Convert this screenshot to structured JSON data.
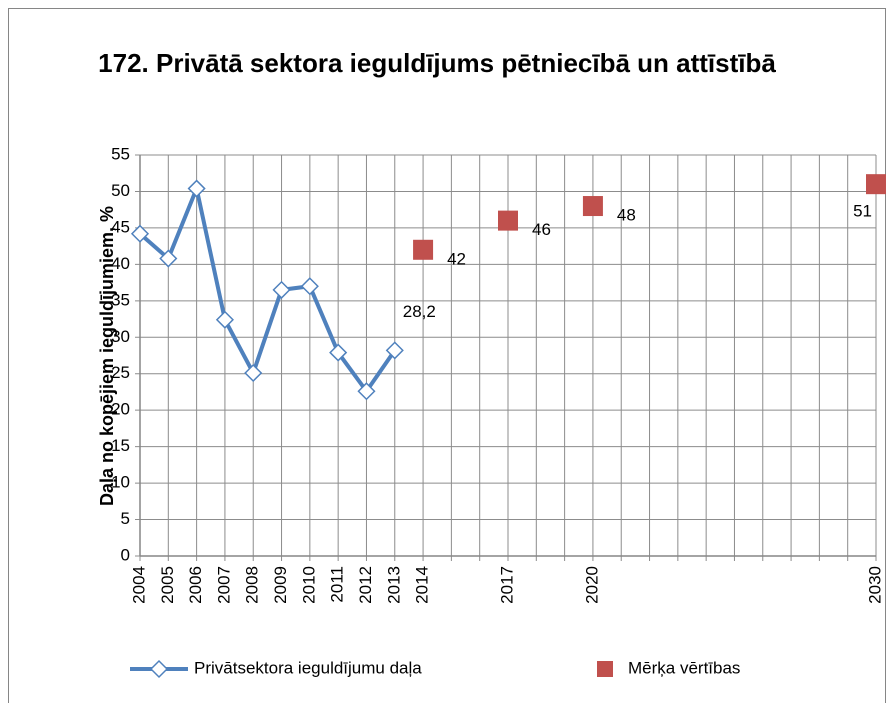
{
  "chart_data": {
    "type": "line",
    "title": "172. Privātā sektora ieguldījums pētniecībā un attīstībā",
    "y_label": "Daļa no kopējiem ieguldījumiem, %",
    "categories": [
      "2004",
      "2005",
      "2006",
      "2007",
      "2008",
      "2009",
      "2010",
      "2011",
      "2012",
      "2013",
      "2014",
      null,
      null,
      "2017",
      null,
      null,
      "2020",
      null,
      null,
      null,
      null,
      null,
      null,
      null,
      null,
      null,
      "2030"
    ],
    "series": [
      {
        "name": "Privātsektora ieguldījumu daļa",
        "color": "#4f81bd",
        "marker": "diamond",
        "values": [
          44.2,
          40.8,
          50.4,
          32.4,
          25.1,
          36.5,
          37.0,
          27.9,
          22.6,
          28.2,
          null,
          null,
          null,
          null,
          null,
          null,
          null,
          null,
          null,
          null,
          null,
          null,
          null,
          null,
          null,
          null,
          null
        ],
        "value_labels": [
          null,
          null,
          null,
          null,
          null,
          null,
          null,
          null,
          null,
          "28,2",
          null,
          null,
          null,
          null,
          null,
          null,
          null,
          null,
          null,
          null,
          null,
          null,
          null,
          null,
          null,
          null,
          null
        ]
      },
      {
        "name": "Mērķa vērtības",
        "color": "#c0504d",
        "marker": "square",
        "values": [
          null,
          null,
          null,
          null,
          null,
          null,
          null,
          null,
          null,
          null,
          42,
          null,
          null,
          46,
          null,
          null,
          48,
          null,
          null,
          null,
          null,
          null,
          null,
          null,
          null,
          null,
          51
        ]
      }
    ],
    "ylim": [
      0,
      55
    ],
    "yticks": [
      0,
      5,
      10,
      15,
      20,
      25,
      30,
      35,
      40,
      45,
      50,
      55
    ],
    "grid": true
  }
}
